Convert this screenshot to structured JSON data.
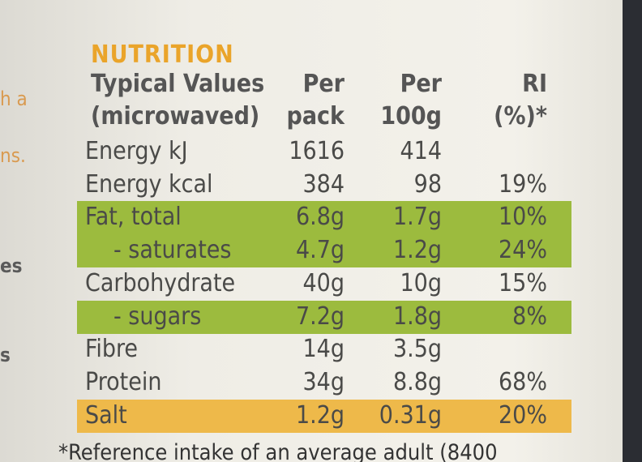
{
  "side_fragments": [
    "h a",
    "ns.",
    "es",
    "s"
  ],
  "title": "NUTRITION",
  "header": [
    [
      "Typical Values",
      "(microwaved)"
    ],
    [
      "Per",
      "pack"
    ],
    [
      "Per",
      "100g"
    ],
    [
      "RI",
      "(%)*"
    ]
  ],
  "rows": [
    {
      "cells": [
        "Energy kJ",
        "1616",
        "414"
      ]
    },
    {
      "cells": [
        "Energy kcal",
        "384",
        "98",
        "19%"
      ]
    },
    {
      "cells": [
        "Fat, total",
        "6.8g",
        "1.7g",
        "10%"
      ],
      "highlight": "#9cbb3e"
    },
    {
      "cells": [
        "- saturates",
        "4.7g",
        "1.2g",
        "24%"
      ],
      "highlight": "#9cbb3e"
    },
    {
      "cells": [
        "Carbohydrate",
        "40g",
        "10g",
        "15%"
      ]
    },
    {
      "cells": [
        "- sugars",
        "7.2g",
        "1.8g",
        "8%"
      ],
      "highlight": "#9cbb3e"
    },
    {
      "cells": [
        "Fibre",
        "14g",
        "3.5g"
      ]
    },
    {
      "cells": [
        "Protein",
        "34g",
        "8.8g",
        "68%"
      ]
    },
    {
      "cells": [
        "Salt",
        "1.2g",
        "0.31g",
        "20%"
      ],
      "highlight": "#eeb94a"
    }
  ],
  "footnote": "*Reference intake of an average adult (8400"
}
